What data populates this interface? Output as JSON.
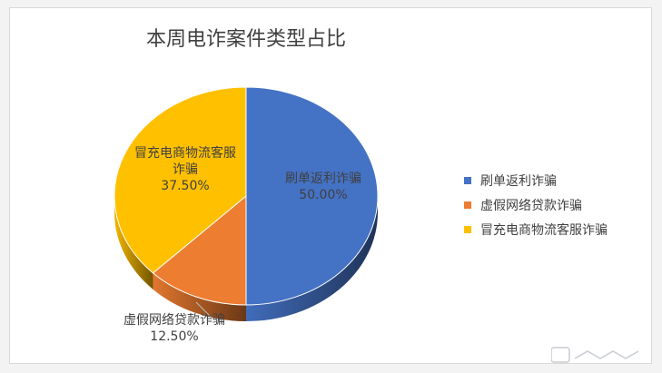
{
  "chart_data": {
    "type": "pie",
    "title": "本周电诈案件类型占比",
    "categories": [
      "刷单返利诈骗",
      "虚假网络贷款诈骗",
      "冒充电商物流客服诈骗"
    ],
    "values": [
      50.0,
      12.5,
      37.5
    ],
    "data_labels": [
      {
        "lines": [
          "刷单返利诈骗",
          "50.00%"
        ]
      },
      {
        "lines": [
          "虚假网络贷款诈骗",
          "12.50%"
        ]
      },
      {
        "lines": [
          "冒充电商物流客服",
          "诈骗",
          "37.50%"
        ]
      }
    ],
    "colors": [
      "#4472C4",
      "#ED7D31",
      "#FFC000"
    ],
    "style": "3d",
    "legend_position": "right"
  },
  "watermark": {
    "icon": "watermark-logo-icon"
  }
}
